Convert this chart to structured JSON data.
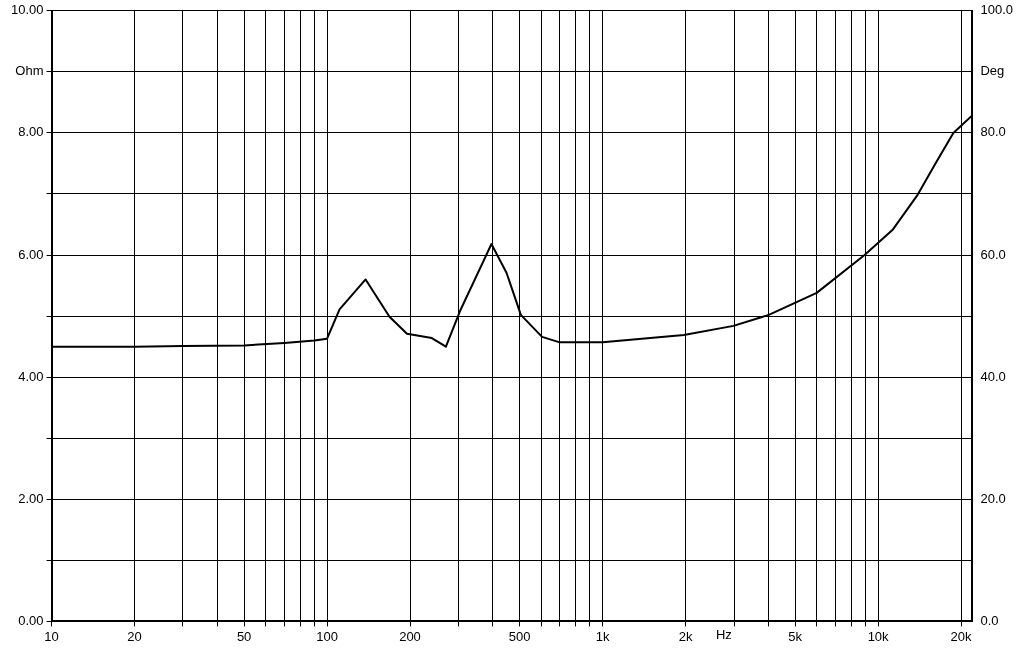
{
  "chart_data": {
    "type": "line",
    "xlabel": "Hz",
    "log": "x",
    "grid": true,
    "legend": false,
    "marker": "none",
    "line_style": "solid",
    "x": [
      10,
      20,
      30,
      50,
      70,
      90,
      100,
      111,
      138,
      168.5,
      195,
      240,
      270,
      305,
      395,
      448,
      505,
      603,
      699,
      1000,
      1972,
      2985,
      4012,
      5985,
      8930,
      11320,
      13930,
      16150,
      18750,
      22000
    ],
    "series": [
      {
        "color": "#000000",
        "values": [
          4.5,
          4.5,
          4.51,
          4.52,
          4.56,
          4.6,
          4.63,
          5.11,
          5.6,
          4.99,
          4.71,
          4.64,
          4.5,
          5.1,
          6.18,
          5.71,
          5.02,
          4.66,
          4.57,
          4.57,
          4.69,
          4.84,
          5.02,
          5.38,
          6.0,
          6.42,
          6.99,
          7.5,
          8.0,
          8.29
        ]
      }
    ],
    "xlim": [
      10,
      22000
    ],
    "xticks": [
      10,
      20,
      {
        "value": 30,
        "label": null
      },
      {
        "value": 40,
        "label": null
      },
      50,
      {
        "value": 60,
        "label": null
      },
      {
        "value": 70,
        "label": null
      },
      {
        "value": 80,
        "label": null
      },
      {
        "value": 90,
        "label": null
      },
      100,
      200,
      {
        "value": 300,
        "label": null
      },
      {
        "value": 400,
        "label": null
      },
      500,
      {
        "value": 600,
        "label": null
      },
      {
        "value": 700,
        "label": null
      },
      {
        "value": 800,
        "label": null
      },
      {
        "value": 900,
        "label": null
      },
      {
        "value": 1000,
        "label": "1k"
      },
      {
        "value": 2000,
        "label": "2k"
      },
      {
        "value": 3000,
        "label": null
      },
      {
        "value": 4000,
        "label": null
      },
      {
        "value": 5000,
        "label": "5k"
      },
      {
        "value": 6000,
        "label": null
      },
      {
        "value": 7000,
        "label": null
      },
      {
        "value": 8000,
        "label": null
      },
      {
        "value": 9000,
        "label": null
      },
      {
        "value": 10000,
        "label": "10k"
      },
      {
        "value": 20000,
        "label": "20k"
      }
    ],
    "ylim": [
      0,
      10
    ],
    "yticks": [
      {
        "value": 0,
        "label": "0.00"
      },
      {
        "value": 1,
        "label": null
      },
      {
        "value": 2,
        "label": "2.00"
      },
      {
        "value": 3,
        "label": null
      },
      {
        "value": 4,
        "label": "4.00"
      },
      {
        "value": 5,
        "label": null
      },
      {
        "value": 6,
        "label": "6.00"
      },
      {
        "value": 7,
        "label": null
      },
      {
        "value": 8,
        "label": "8.00"
      },
      {
        "value": 9,
        "label": "Ohm"
      },
      {
        "value": 10,
        "label": "10.00"
      }
    ],
    "y2lim": [
      0,
      100
    ],
    "y2ticks": [
      {
        "value": 0,
        "label": "0.0"
      },
      {
        "value": 20,
        "label": "20.0"
      },
      {
        "value": 40,
        "label": "40.0"
      },
      {
        "value": 60,
        "label": "60.0"
      },
      {
        "value": 80,
        "label": "80.0"
      },
      {
        "value": 90,
        "label": "Deg"
      },
      {
        "value": 100,
        "label": "100.0"
      }
    ]
  }
}
